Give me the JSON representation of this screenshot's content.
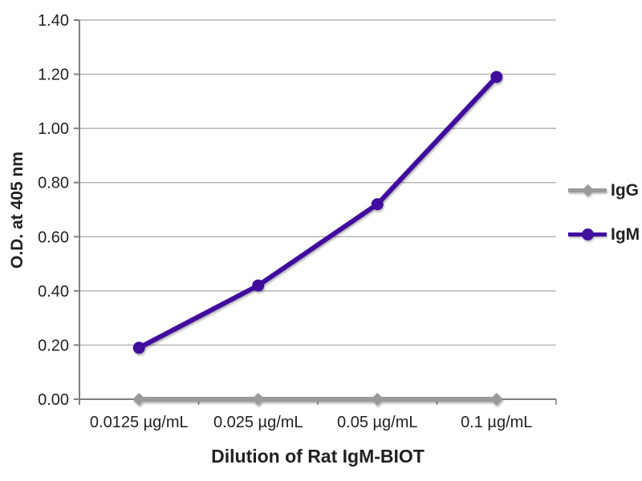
{
  "chart_data": {
    "type": "line",
    "title": "",
    "xlabel": "Dilution of Rat IgM-BIOT",
    "ylabel": "O.D. at 405 nm",
    "categories": [
      "0.0125 µg/mL",
      "0.025 µg/mL",
      "0.05 µg/mL",
      "0.1 µg/mL"
    ],
    "series": [
      {
        "name": "IgG",
        "marker": "diamond",
        "color": "#9a9a9a",
        "values": [
          0.0,
          0.0,
          0.0,
          0.0
        ]
      },
      {
        "name": "IgM",
        "marker": "circle",
        "color": "#41109e",
        "values": [
          0.19,
          0.42,
          0.72,
          1.19
        ]
      }
    ],
    "ylim": [
      0.0,
      1.4
    ],
    "ytick_step": 0.2,
    "ytick_labels": [
      "0.00",
      "0.20",
      "0.40",
      "0.60",
      "0.80",
      "1.00",
      "1.20",
      "1.40"
    ],
    "grid": true,
    "legend_position": "right",
    "colors": {
      "axis": "#7f7f7f",
      "grid": "#a6a6a6",
      "text": "#231f20"
    }
  }
}
